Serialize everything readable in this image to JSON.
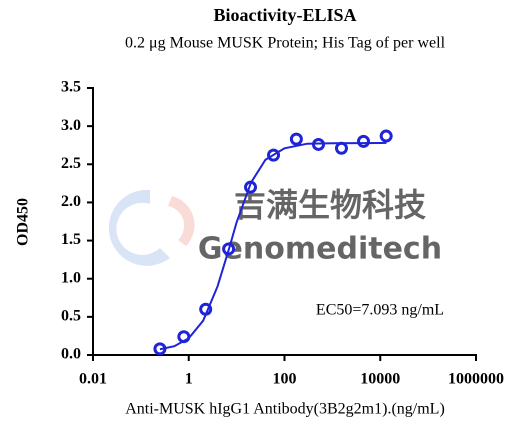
{
  "chart_data": {
    "type": "scatter",
    "title": "Bioactivity-ELISA",
    "subtitle": "0.2 μg Mouse MUSK Protein; His Tag of per well",
    "x_label": "Anti-MUSK hIgG1 Antibody(3B2g2m1).(ng/mL)",
    "y_label": "OD450",
    "annotation": "EC50=7.093 ng/mL",
    "watermark": [
      "吉满生物科技",
      "Genomeditech"
    ],
    "x_scale": "log",
    "xlim": [
      0.01,
      1000000
    ],
    "xticks": [
      0.01,
      1,
      100,
      10000,
      1000000
    ],
    "ylim": [
      0,
      3.5
    ],
    "yticks": [
      {
        "value": 0,
        "label": "0.0"
      },
      0.5,
      {
        "value": 1,
        "label": "1.0"
      },
      1.5,
      {
        "value": 2,
        "label": "2.0"
      },
      2.5,
      {
        "value": 3,
        "label": "3.0"
      },
      3.5
    ],
    "series": [
      {
        "mode": "markers",
        "color": "#1f24d6",
        "x": [
          0.25,
          0.79,
          2.26,
          6.8,
          19.5,
          59,
          177,
          513,
          1550,
          4470,
          13300
        ],
        "values": [
          0.08,
          0.24,
          0.6,
          1.39,
          2.2,
          2.62,
          2.83,
          2.76,
          2.71,
          2.8,
          2.87
        ]
      },
      {
        "mode": "line",
        "color": "#1f24d6",
        "x": [
          0.25,
          0.5,
          1,
          2,
          4,
          7,
          10,
          20,
          40,
          100,
          300,
          1000,
          13500
        ],
        "values": [
          0.075,
          0.115,
          0.22,
          0.45,
          0.9,
          1.4,
          1.74,
          2.26,
          2.56,
          2.71,
          2.77,
          2.775,
          2.78
        ]
      }
    ]
  }
}
